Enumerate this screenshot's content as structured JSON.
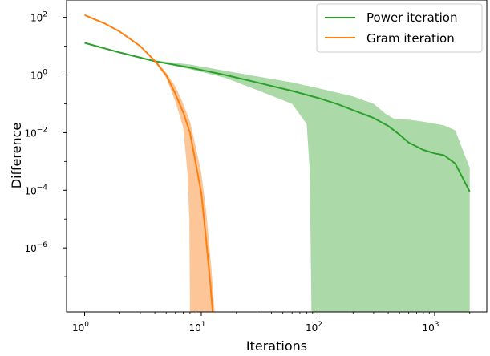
{
  "chart_data": {
    "type": "line",
    "xscale": "log",
    "yscale": "log",
    "xlim": [
      0.7,
      2800
    ],
    "ylim": [
      6e-09,
      400
    ],
    "xlabel": "Iterations",
    "ylabel": "Difference",
    "grid": false,
    "legend_position": "top-right",
    "x_ticks": [
      {
        "value": 1,
        "base": "10",
        "exp": "0"
      },
      {
        "value": 10,
        "base": "10",
        "exp": "1"
      },
      {
        "value": 100,
        "base": "10",
        "exp": "2"
      },
      {
        "value": 1000,
        "base": "10",
        "exp": "3"
      }
    ],
    "y_ticks": [
      {
        "value": 1e-06,
        "base": "10",
        "exp": "−6"
      },
      {
        "value": 0.0001,
        "base": "10",
        "exp": "−4"
      },
      {
        "value": 0.01,
        "base": "10",
        "exp": "−2"
      },
      {
        "value": 1,
        "base": "10",
        "exp": "0"
      },
      {
        "value": 100,
        "base": "10",
        "exp": "2"
      }
    ],
    "series": [
      {
        "name": "Power iteration",
        "color": "#2ca02c",
        "band_color": "#abdaa8",
        "line": [
          [
            1,
            13
          ],
          [
            2,
            6
          ],
          [
            4,
            3
          ],
          [
            8,
            1.8
          ],
          [
            16,
            1.0
          ],
          [
            30,
            0.55
          ],
          [
            60,
            0.28
          ],
          [
            100,
            0.16
          ],
          [
            150,
            0.095
          ],
          [
            200,
            0.06
          ],
          [
            300,
            0.032
          ],
          [
            400,
            0.017
          ],
          [
            500,
            0.0085
          ],
          [
            600,
            0.0045
          ],
          [
            800,
            0.0025
          ],
          [
            1000,
            0.0019
          ],
          [
            1200,
            0.00165
          ],
          [
            1500,
            0.00085
          ],
          [
            2000,
            9e-05
          ]
        ],
        "band_upper": [
          [
            4,
            3.2
          ],
          [
            8,
            2.3
          ],
          [
            16,
            1.4
          ],
          [
            30,
            0.9
          ],
          [
            60,
            0.55
          ],
          [
            100,
            0.35
          ],
          [
            200,
            0.18
          ],
          [
            300,
            0.1
          ],
          [
            380,
            0.045
          ],
          [
            450,
            0.03
          ],
          [
            600,
            0.028
          ],
          [
            800,
            0.024
          ],
          [
            1200,
            0.018
          ],
          [
            1500,
            0.012
          ],
          [
            2000,
            0.0006
          ]
        ],
        "band_lower": [
          [
            4,
            2.9
          ],
          [
            8,
            1.6
          ],
          [
            16,
            0.8
          ],
          [
            30,
            0.3
          ],
          [
            60,
            0.1
          ],
          [
            80,
            0.02
          ],
          [
            85,
            0.0005
          ],
          [
            88,
            6e-09
          ],
          [
            2000,
            6e-09
          ]
        ]
      },
      {
        "name": "Gram iteration",
        "color": "#ff7f0e",
        "band_color": "#fdc698",
        "line": [
          [
            1,
            120
          ],
          [
            1.5,
            60
          ],
          [
            2,
            32
          ],
          [
            3,
            10
          ],
          [
            4,
            3.1
          ],
          [
            5,
            1.0
          ],
          [
            6,
            0.22
          ],
          [
            7,
            0.05
          ],
          [
            8,
            0.01
          ],
          [
            9,
            0.0008
          ],
          [
            10,
            8e-05
          ],
          [
            11,
            2e-06
          ],
          [
            12,
            5e-08
          ],
          [
            12.5,
            6e-09
          ]
        ],
        "band_upper": [
          [
            4,
            3.5
          ],
          [
            5,
            1.2
          ],
          [
            6,
            0.4
          ],
          [
            7,
            0.1
          ],
          [
            8,
            0.025
          ],
          [
            9,
            0.003
          ],
          [
            10,
            0.0004
          ],
          [
            11,
            2e-05
          ],
          [
            12.2,
            2e-07
          ],
          [
            13,
            6e-09
          ]
        ],
        "band_lower": [
          [
            4,
            2.8
          ],
          [
            5,
            0.8
          ],
          [
            6,
            0.12
          ],
          [
            7,
            0.015
          ],
          [
            7.6,
            0.0004
          ],
          [
            7.9,
            1e-05
          ],
          [
            8,
            6e-09
          ]
        ]
      }
    ]
  }
}
